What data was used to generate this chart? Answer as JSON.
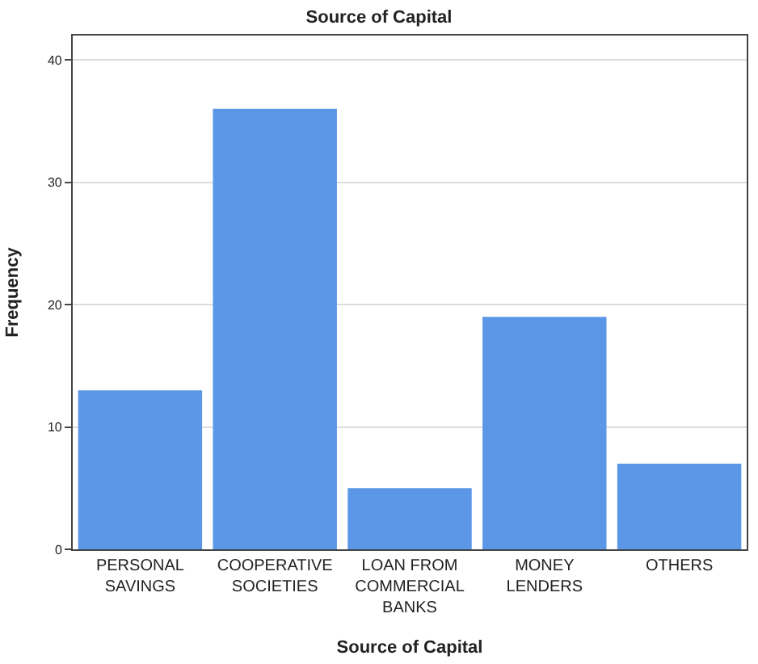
{
  "chart_data": {
    "type": "bar",
    "title": "Source of Capital",
    "xlabel": "Source of Capital",
    "ylabel": "Frequency",
    "categories": [
      "PERSONAL SAVINGS",
      "COOPERATIVE SOCIETIES",
      "LOAN FROM COMMERCIAL BANKS",
      "MONEY LENDERS",
      "OTHERS"
    ],
    "values": [
      13,
      36,
      5,
      19,
      7
    ],
    "color": "#5b97e6",
    "ylim": [
      0,
      42
    ],
    "yticks": [
      0,
      10,
      20,
      30,
      40
    ],
    "grid": "y"
  }
}
